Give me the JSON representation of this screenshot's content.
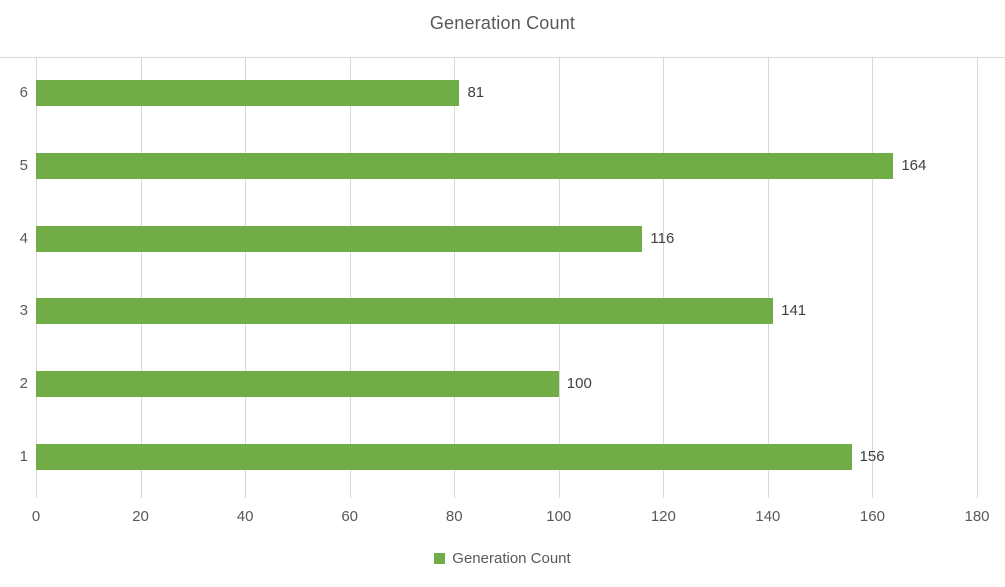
{
  "chart_data": {
    "type": "bar",
    "orientation": "horizontal",
    "title": "Generation Count",
    "categories": [
      "1",
      "2",
      "3",
      "4",
      "5",
      "6"
    ],
    "values": [
      156,
      100,
      141,
      116,
      164,
      81
    ],
    "data_labels": [
      "156",
      "100",
      "141",
      "116",
      "164",
      "81"
    ],
    "series_name": "Generation Count",
    "xlabel": "",
    "ylabel": "",
    "xlim": [
      0,
      180
    ],
    "xtick_step": 20,
    "xticks": [
      "0",
      "20",
      "40",
      "60",
      "80",
      "100",
      "120",
      "140",
      "160",
      "180"
    ],
    "grid": "vertical-only",
    "legend": {
      "position": "bottom-center",
      "label": "Generation Count"
    },
    "colors": {
      "bar": "#70AD47",
      "gridline": "#D9D9D9",
      "title_text": "#595959",
      "axis_text": "#595959",
      "data_label_text": "#404040",
      "legend_text": "#595959",
      "background": "#FFFFFF"
    }
  }
}
